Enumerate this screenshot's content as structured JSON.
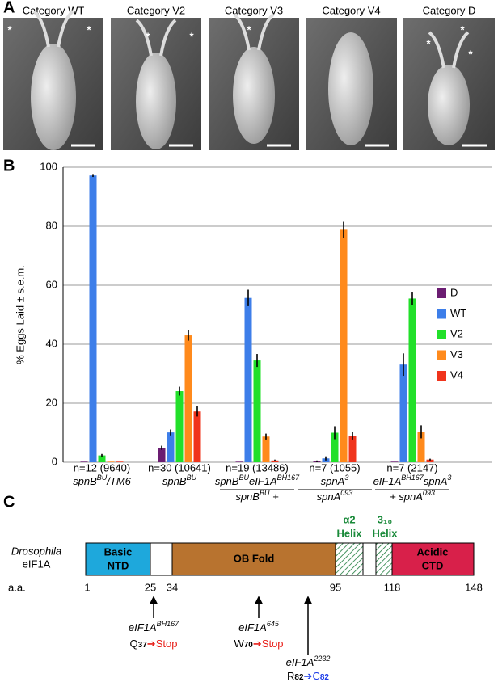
{
  "panel_labels": [
    "A",
    "B",
    "C"
  ],
  "panel_a": {
    "asterisk": "*",
    "images": [
      "Category WT",
      "Category V2",
      "Category V3",
      "Category V4",
      "Category D"
    ]
  },
  "chart_data": {
    "type": "bar",
    "ylabel": "% Eggs Laid ± s.e.m.",
    "ylim": [
      0,
      100
    ],
    "yticks": [
      0,
      20,
      40,
      60,
      80,
      100
    ],
    "grid": true,
    "categories": [
      "n=12 (9640)",
      "n=30 (10641)",
      "n=19 (13486)",
      "n=7 (1055)",
      "n=7 (2147)"
    ],
    "genotypes": [
      [
        [
          {
            "t": "spnB",
            "sup": "BU"
          },
          {
            "t": "/TM6"
          }
        ]
      ],
      [
        [
          {
            "t": "spnB",
            "sup": "BU"
          }
        ]
      ],
      [
        [
          {
            "t": "spnB",
            "sup": "BU"
          },
          {
            "t": "eIF1A",
            "sup": "BH167"
          }
        ],
        [
          {
            "t": "spnB",
            "sup": "BU"
          },
          {
            "t": " +"
          }
        ]
      ],
      [
        [
          {
            "t": "spnA",
            "sup": "3"
          }
        ],
        [
          {
            "t": "spnA",
            "sup": "093"
          }
        ]
      ],
      [
        [
          {
            "t": "eIF1A",
            "sup": "BH167"
          },
          {
            "t": "spnA",
            "sup": "3"
          }
        ],
        [
          {
            "t": "+ spnA",
            "sup": "093"
          }
        ]
      ]
    ],
    "series": [
      {
        "name": "D",
        "color": "#6b1d72",
        "values": [
          0.2,
          4.9,
          0.2,
          0.3,
          0.2
        ],
        "errors": [
          null,
          0.7,
          null,
          0.3,
          null
        ]
      },
      {
        "name": "WT",
        "color": "#3d7ee9",
        "values": [
          97.2,
          10.1,
          55.7,
          1.3,
          33.1
        ],
        "errors": [
          0.5,
          1.0,
          2.8,
          0.7,
          3.8
        ]
      },
      {
        "name": "V2",
        "color": "#22e02a",
        "values": [
          2.3,
          24.1,
          34.5,
          10.0,
          55.5
        ],
        "errors": [
          0.5,
          1.5,
          2.2,
          2.2,
          2.3
        ]
      },
      {
        "name": "V3",
        "color": "#ff8a1c",
        "values": [
          0.2,
          43.0,
          8.7,
          78.8,
          10.3
        ],
        "errors": [
          null,
          1.8,
          1.0,
          2.7,
          2.2
        ]
      },
      {
        "name": "V4",
        "color": "#f0341c",
        "values": [
          0.2,
          17.2,
          0.6,
          9.0,
          0.9
        ],
        "errors": [
          null,
          1.7,
          0.3,
          1.3,
          0.3
        ]
      }
    ]
  },
  "panel_c": {
    "species": "Drosophila",
    "protein": "eIF1A",
    "domains": [
      [
        "Basic",
        "NTD"
      ],
      [
        "OB Fold"
      ],
      [
        "Acidic",
        "CTD"
      ]
    ],
    "helices": [
      [
        "α2",
        "Helix"
      ],
      [
        "3₁₀",
        "Helix"
      ]
    ],
    "aa_label": "a.a.",
    "positions": [
      1,
      25,
      34,
      95,
      118,
      148
    ],
    "mutations": [
      {
        "allele": "eIF1A",
        "sup": "BH167",
        "from": "Q",
        "pos": "37",
        "to": "Stop"
      },
      {
        "allele": "eIF1A",
        "sup": "645",
        "from": "W",
        "pos": "70",
        "to": "Stop"
      },
      {
        "allele": "eIF1A",
        "sup": "2232",
        "from": "R",
        "pos": "82",
        "to": "C",
        "to_pos": "82"
      }
    ]
  }
}
